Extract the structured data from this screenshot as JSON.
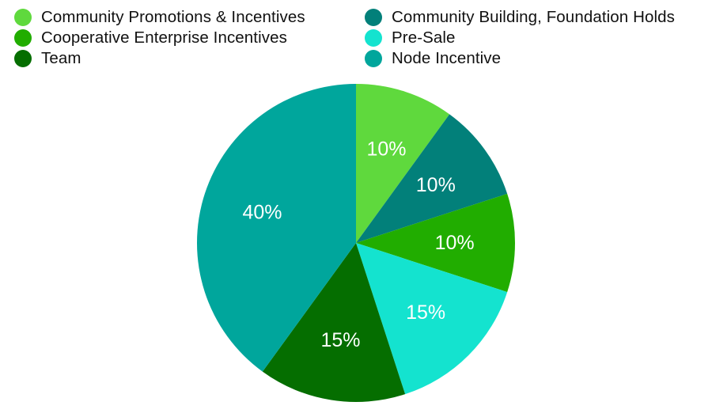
{
  "chart_data": {
    "type": "pie",
    "title": "",
    "start_angle_deg": 0,
    "direction": "clockwise",
    "legend_placement": "top",
    "legend": [
      {
        "name": "Community Promotions & Incentives",
        "color": "#5fd93d"
      },
      {
        "name": "Cooperative Enterprise Incentives",
        "color": "#21ad00"
      },
      {
        "name": "Team",
        "color": "#056e00"
      },
      {
        "name": "Community Building, Foundation Holds",
        "color": "#02807a"
      },
      {
        "name": "Pre-Sale",
        "color": "#14e3cf"
      },
      {
        "name": "Node Incentive",
        "color": "#00a69c"
      }
    ],
    "slices": [
      {
        "name": "Community Promotions & Incentives",
        "value": 10,
        "label": "10%",
        "color": "#5fd93d"
      },
      {
        "name": "Community Building, Foundation Holds",
        "value": 10,
        "label": "10%",
        "color": "#02807a"
      },
      {
        "name": "Cooperative Enterprise Incentives",
        "value": 10,
        "label": "10%",
        "color": "#21ad00"
      },
      {
        "name": "Pre-Sale",
        "value": 15,
        "label": "15%",
        "color": "#14e3cf"
      },
      {
        "name": "Team",
        "value": 15,
        "label": "15%",
        "color": "#056e00"
      },
      {
        "name": "Node Incentive",
        "value": 40,
        "label": "40%",
        "color": "#00a69c"
      }
    ]
  }
}
